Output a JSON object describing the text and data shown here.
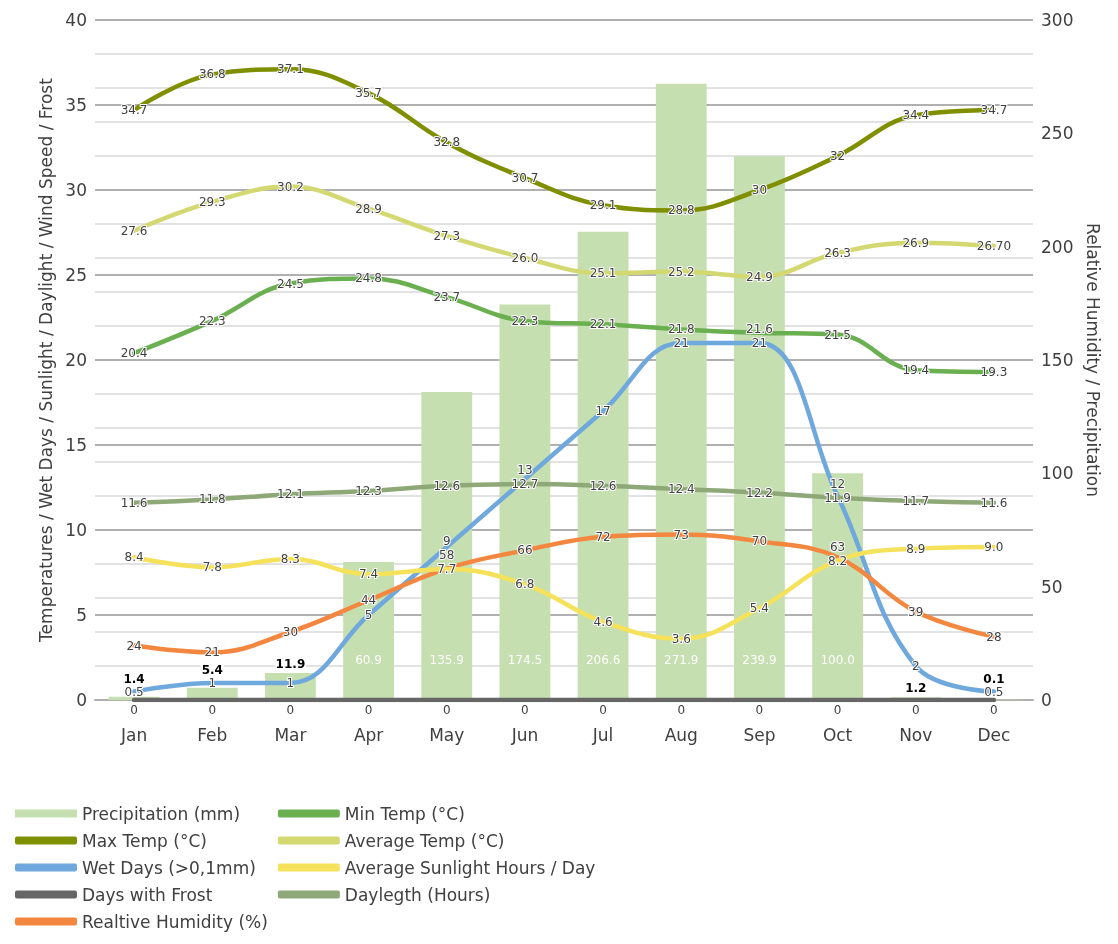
{
  "chart_data": {
    "type": "line",
    "categories": [
      "Jan",
      "Feb",
      "Mar",
      "Apr",
      "May",
      "Jun",
      "Jul",
      "Aug",
      "Sep",
      "Oct",
      "Nov",
      "Dec"
    ],
    "ylabel": "Temperatures / Wet Days / Sunlight / Daylight / Wind Speed / Frost",
    "y2label": "Relative Humidity / Precipitation",
    "ylim": [
      0,
      40
    ],
    "yticks": [
      0,
      5,
      10,
      15,
      20,
      25,
      30,
      35,
      40
    ],
    "y2lim": [
      0,
      300
    ],
    "y2ticks": [
      0,
      50,
      100,
      150,
      200,
      250,
      300
    ],
    "grid": true,
    "legend": "bottom",
    "marker": "none",
    "line_style": "solid",
    "data_labels": true,
    "series": [
      {
        "name": "Precipitation (mm)",
        "type": "bar",
        "axis": "y2",
        "color": "#c5dfb0",
        "values": [
          1.4,
          5.4,
          11.9,
          60.9,
          135.9,
          174.5,
          206.6,
          271.9,
          239.9,
          100.0,
          1.2,
          0.1
        ],
        "value_labels": [
          "1.4",
          "5.4",
          "11.9",
          "60.9",
          "135.9",
          "174.5",
          "206.6",
          "271.9",
          "239.9",
          "100.0",
          "1.2",
          "0.1"
        ]
      },
      {
        "name": "Max Temp (°C)",
        "color": "#7f8f00",
        "values": [
          34.7,
          36.8,
          37.1,
          35.7,
          32.8,
          30.7,
          29.1,
          28.8,
          30,
          32,
          34.4,
          34.7
        ]
      },
      {
        "name": "Wet Days (>0,1mm)",
        "color": "#6fa8dc",
        "values": [
          0.5,
          1,
          1,
          5,
          9,
          13,
          17,
          21,
          21,
          12,
          2,
          0.5
        ]
      },
      {
        "name": "Days with Frost",
        "color": "#666666",
        "values": [
          0,
          0,
          0,
          0,
          0,
          0,
          0,
          0,
          0,
          0,
          0,
          0
        ]
      },
      {
        "name": "Realtive Humidity (%)",
        "axis": "y2",
        "color": "#f4873f",
        "values": [
          24,
          21,
          30,
          44,
          58,
          66,
          72,
          73,
          70,
          63,
          39,
          28
        ]
      },
      {
        "name": "Min Temp (°C)",
        "color": "#6aaf50",
        "values": [
          20.4,
          22.3,
          24.5,
          24.8,
          23.7,
          22.3,
          22.1,
          21.8,
          21.6,
          21.5,
          19.4,
          19.3
        ]
      },
      {
        "name": "Average Temp (°C)",
        "color": "#d4d870",
        "values": [
          27.6,
          29.3,
          30.2,
          28.9,
          27.3,
          26.0,
          25.1,
          25.2,
          24.9,
          26.3,
          26.9,
          26.7
        ],
        "value_labels": [
          "27.6",
          "29.3",
          "30.2",
          "28.9",
          "27.3",
          "26.0",
          "25.1",
          "25.2",
          "24.9",
          "26.3",
          "26.9",
          "26.70"
        ]
      },
      {
        "name": "Average Sunlight Hours / Day",
        "color": "#f5e25a",
        "values": [
          8.4,
          7.8,
          8.3,
          7.4,
          7.7,
          6.8,
          4.6,
          3.6,
          5.4,
          8.2,
          8.9,
          9.0
        ],
        "value_labels": [
          "8.4",
          "7.8",
          "8.3",
          "7.4",
          "7.7",
          "6.8",
          "4.6",
          "3.6",
          "5.4",
          "8.2",
          "8.9",
          "9.0"
        ]
      },
      {
        "name": "Daylegth (Hours)",
        "color": "#8fa878",
        "values": [
          11.6,
          11.8,
          12.1,
          12.3,
          12.6,
          12.7,
          12.6,
          12.4,
          12.2,
          11.9,
          11.7,
          11.6
        ]
      }
    ]
  }
}
